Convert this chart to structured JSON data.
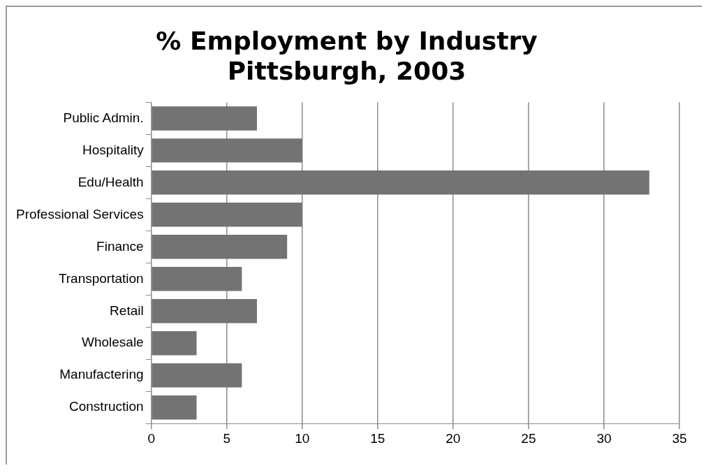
{
  "chart_data": {
    "type": "bar",
    "orientation": "horizontal",
    "title": "% Employment by Industry\nPittsburgh, 2003",
    "categories": [
      "Public Admin.",
      "Hospitality",
      "Edu/Health",
      "Professional Services",
      "Finance",
      "Transportation",
      "Retail",
      "Wholesale",
      "Manufactering",
      "Construction"
    ],
    "values": [
      7,
      10,
      33,
      10,
      9,
      6,
      7,
      3,
      6,
      3
    ],
    "color": "#737373",
    "xlim": [
      0,
      35
    ],
    "xticks": [
      0,
      5,
      10,
      15,
      20,
      25,
      30,
      35
    ],
    "grid": "x",
    "legend": false
  }
}
